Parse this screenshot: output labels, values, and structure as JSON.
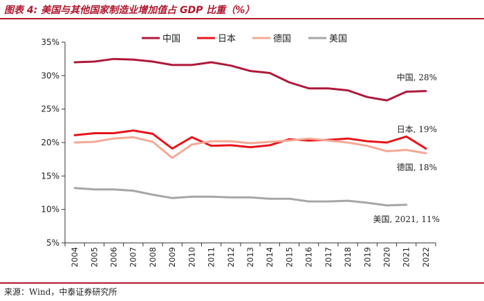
{
  "header": {
    "title": "图表 4:  美国与其他国家制造业增加值占 GDP 比重（%）"
  },
  "footer": {
    "source": "来源：Wind，中泰证券研究所"
  },
  "chart_data": {
    "type": "line",
    "title": "美国与其他国家制造业增加值占 GDP 比重（%）",
    "xlabel": "",
    "ylabel": "",
    "ylim": [
      5,
      35
    ],
    "yticks": [
      "5%",
      "10%",
      "15%",
      "20%",
      "25%",
      "30%",
      "35%"
    ],
    "ytick_values": [
      5,
      10,
      15,
      20,
      25,
      30,
      35
    ],
    "categories": [
      "2004",
      "2005",
      "2006",
      "2007",
      "2008",
      "2009",
      "2010",
      "2011",
      "2012",
      "2013",
      "2014",
      "2015",
      "2016",
      "2017",
      "2018",
      "2019",
      "2020",
      "2021",
      "2022"
    ],
    "grid": false,
    "legend_position": "top",
    "series": [
      {
        "name": "中国",
        "color": "#b0183a",
        "annotation": "中国, 28%",
        "values": [
          32.0,
          32.1,
          32.5,
          32.4,
          32.1,
          31.6,
          31.6,
          32.0,
          31.5,
          30.7,
          30.4,
          29.0,
          28.1,
          28.1,
          27.8,
          26.8,
          26.3,
          27.6,
          27.7
        ]
      },
      {
        "name": "日本",
        "color": "#e8141b",
        "annotation": "日本, 19%",
        "values": [
          21.1,
          21.4,
          21.4,
          21.8,
          21.3,
          19.1,
          20.8,
          19.5,
          19.6,
          19.3,
          19.6,
          20.5,
          20.3,
          20.4,
          20.6,
          20.2,
          20.0,
          20.9,
          19.1
        ]
      },
      {
        "name": "德国",
        "color": "#f4a995",
        "annotation": "德国, 18%",
        "values": [
          20.0,
          20.1,
          20.6,
          20.8,
          20.1,
          17.7,
          19.7,
          20.2,
          20.2,
          19.9,
          20.1,
          20.3,
          20.6,
          20.3,
          20.0,
          19.5,
          18.7,
          18.9,
          18.4
        ]
      },
      {
        "name": "美国",
        "color": "#a6a6a6",
        "annotation": "美国, 2021, 11%",
        "values": [
          13.2,
          13.0,
          13.0,
          12.8,
          12.2,
          11.7,
          11.9,
          11.9,
          11.8,
          11.8,
          11.6,
          11.6,
          11.2,
          11.2,
          11.3,
          11.0,
          10.6,
          10.7,
          null
        ]
      }
    ]
  }
}
